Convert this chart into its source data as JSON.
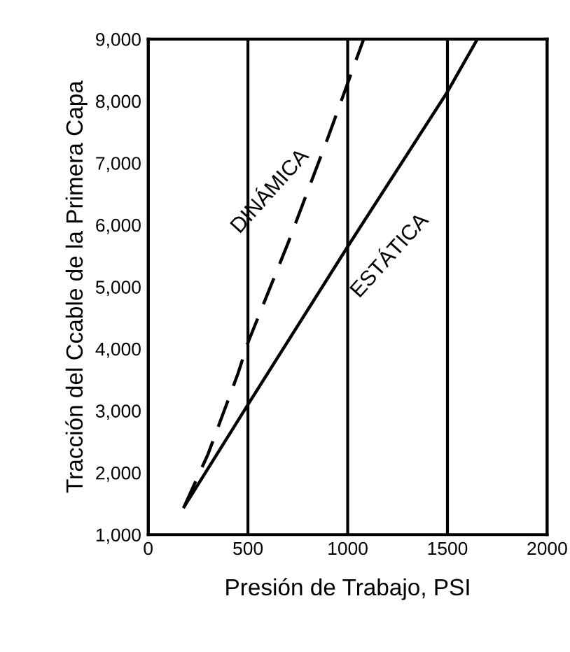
{
  "chart_data": {
    "type": "line",
    "xlabel": "Presión de Trabajo, PSI",
    "ylabel": "Tracción del Ccable de la Primera Capa",
    "xlim": [
      0,
      2000
    ],
    "xticks": [
      0,
      500,
      1000,
      1500,
      2000
    ],
    "ylim": [
      1000,
      9000
    ],
    "yticks": [
      {
        "value": 1000,
        "label": "1,000"
      },
      {
        "value": 2000,
        "label": "2,000"
      },
      {
        "value": 3000,
        "label": "3,000"
      },
      {
        "value": 4000,
        "label": "4,000"
      },
      {
        "value": 5000,
        "label": "5,000"
      },
      {
        "value": 6000,
        "label": "6,000"
      },
      {
        "value": 7000,
        "label": "7,000"
      },
      {
        "value": 8000,
        "label": "8,000"
      },
      {
        "value": 9000,
        "label": "9,000"
      }
    ],
    "grid": "x",
    "legend": false,
    "series": [
      {
        "name": "DINÁMICA",
        "color": "#000000",
        "line_style": "dashed",
        "x": [
          180,
          300,
          450,
          500,
          700,
          900,
          1080
        ],
        "values": [
          1450,
          2300,
          3600,
          4100,
          5700,
          7400,
          9000
        ]
      },
      {
        "name": "ESTÁTICA",
        "color": "#000000",
        "line_style": "solid",
        "x": [
          180,
          500,
          1000,
          1500,
          1650
        ],
        "values": [
          1450,
          3100,
          5650,
          8150,
          9000
        ]
      }
    ]
  }
}
